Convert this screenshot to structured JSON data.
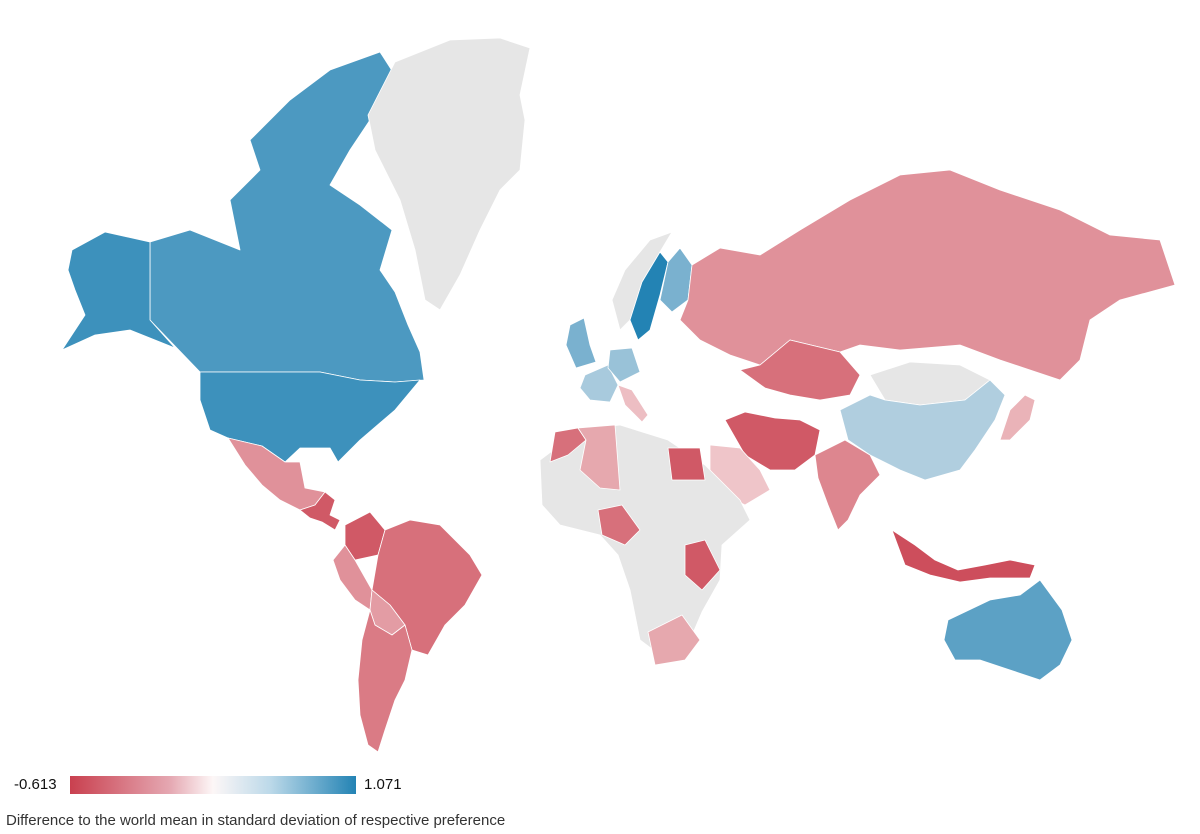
{
  "legend": {
    "min_label": "-0.613",
    "max_label": "1.071",
    "min_value": -0.613,
    "max_value": 1.071,
    "color_low": "#c9404f",
    "color_mid": "#fdf7f7",
    "color_high": "#2383b4",
    "no_data_color": "#e6e6e6"
  },
  "caption": "Difference to the world mean in standard deviation of respective preference",
  "regions": [
    {
      "name": "Canada",
      "value": 0.8
    },
    {
      "name": "Alaska",
      "value": 0.9
    },
    {
      "name": "United States",
      "value": 0.9
    },
    {
      "name": "Greenland",
      "value": null
    },
    {
      "name": "Mexico",
      "value": -0.25
    },
    {
      "name": "Central America",
      "value": -0.5
    },
    {
      "name": "Colombia",
      "value": -0.5
    },
    {
      "name": "Brazil",
      "value": -0.4
    },
    {
      "name": "Peru",
      "value": -0.25
    },
    {
      "name": "Bolivia",
      "value": -0.2
    },
    {
      "name": "Chile/Argentina",
      "value": -0.35
    },
    {
      "name": "Sweden",
      "value": 1.07
    },
    {
      "name": "Finland",
      "value": 0.5
    },
    {
      "name": "Norway",
      "value": null
    },
    {
      "name": "United Kingdom",
      "value": 0.5
    },
    {
      "name": "France",
      "value": 0.2
    },
    {
      "name": "Germany",
      "value": 0.3
    },
    {
      "name": "Italy",
      "value": -0.05
    },
    {
      "name": "Russia",
      "value": -0.25
    },
    {
      "name": "Kazakhstan",
      "value": -0.4
    },
    {
      "name": "China",
      "value": 0.15
    },
    {
      "name": "Mongolia",
      "value": null
    },
    {
      "name": "Iran/Afghanistan",
      "value": -0.5
    },
    {
      "name": "India",
      "value": -0.3
    },
    {
      "name": "Egypt",
      "value": -0.5
    },
    {
      "name": "Algeria",
      "value": -0.15
    },
    {
      "name": "Morocco",
      "value": -0.4
    },
    {
      "name": "Saudi Arabia",
      "value": -0.02
    },
    {
      "name": "Nigeria",
      "value": -0.4
    },
    {
      "name": "Tanzania",
      "value": -0.5
    },
    {
      "name": "South Africa",
      "value": -0.15
    },
    {
      "name": "Africa (other)",
      "value": null
    },
    {
      "name": "Indonesia",
      "value": -0.55
    },
    {
      "name": "Australia",
      "value": 0.7
    },
    {
      "name": "Japan",
      "value": -0.1
    }
  ]
}
